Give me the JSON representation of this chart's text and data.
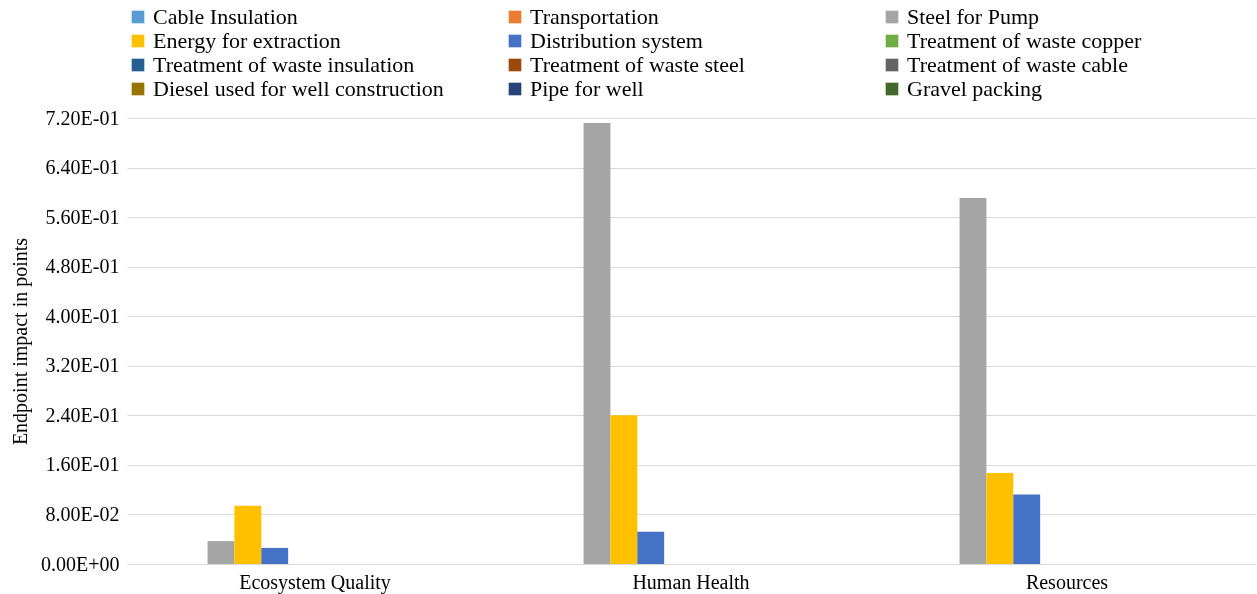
{
  "chart_data": {
    "type": "bar",
    "ylabel": "Endpoint impact in points",
    "categories": [
      "Ecosystem Quality",
      "Human Health",
      "Resources"
    ],
    "series": [
      {
        "name": "Cable Insulation",
        "color": "#5b9bd5",
        "values": [
          0,
          0,
          0
        ]
      },
      {
        "name": "Transportation",
        "color": "#ed7d31",
        "values": [
          0,
          0,
          0
        ]
      },
      {
        "name": "Steel for Pump",
        "color": "#a5a5a5",
        "values": [
          0.037,
          0.712,
          0.591
        ]
      },
      {
        "name": "Energy for extraction",
        "color": "#ffc000",
        "values": [
          0.094,
          0.24,
          0.147
        ]
      },
      {
        "name": "Distribution system",
        "color": "#4472c4",
        "values": [
          0.026,
          0.052,
          0.112
        ]
      },
      {
        "name": "Treatment of waste copper",
        "color": "#70ad47",
        "values": [
          0,
          0,
          0
        ]
      },
      {
        "name": "Treatment of waste insulation",
        "color": "#255e91",
        "values": [
          0,
          0,
          0
        ]
      },
      {
        "name": "Treatment of waste steel",
        "color": "#9e480e",
        "values": [
          0,
          0,
          0
        ]
      },
      {
        "name": "Treatment of waste cable",
        "color": "#636363",
        "values": [
          0,
          0,
          0
        ]
      },
      {
        "name": "Diesel used for well construction",
        "color": "#997300",
        "values": [
          0,
          0,
          0
        ]
      },
      {
        "name": "Pipe for well",
        "color": "#264478",
        "values": [
          0,
          0,
          0
        ]
      },
      {
        "name": "Gravel packing",
        "color": "#43682b",
        "values": [
          0,
          0,
          0
        ]
      }
    ],
    "ylim": [
      0,
      0.72
    ],
    "yticks": [
      {
        "value": 0,
        "label": "0.00E+00"
      },
      {
        "value": 0.08,
        "label": "8.00E-02"
      },
      {
        "value": 0.16,
        "label": "1.60E-01"
      },
      {
        "value": 0.24,
        "label": "2.40E-01"
      },
      {
        "value": 0.32,
        "label": "3.20E-01"
      },
      {
        "value": 0.4,
        "label": "4.00E-01"
      },
      {
        "value": 0.48,
        "label": "4.80E-01"
      },
      {
        "value": 0.56,
        "label": "5.60E-01"
      },
      {
        "value": 0.64,
        "label": "6.40E-01"
      },
      {
        "value": 0.72,
        "label": "7.20E-01"
      }
    ],
    "grid": "y",
    "legend": "top"
  }
}
